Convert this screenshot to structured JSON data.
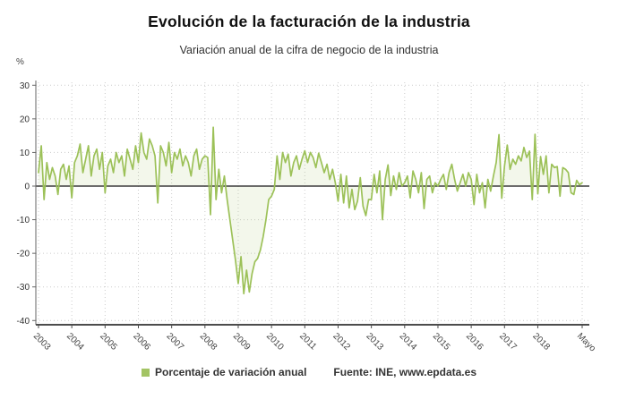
{
  "header": {
    "title": "Evolución de la facturación de la industria",
    "subtitle": "Variación anual de la cifra de negocio de la industria"
  },
  "chart": {
    "unit_label": "%"
  },
  "legend": {
    "series_label": "Porcentaje de variación anual",
    "source_label": "Fuente: INE, www.epdata.es",
    "swatch_color": "#a3c464"
  },
  "colors": {
    "line": "#9cc158",
    "fill": "rgba(156,193,88,0.12)",
    "grid": "#cccccc",
    "zero_line": "#3c3c3c",
    "axis": "#4c4c4c"
  },
  "chart_data": {
    "type": "line",
    "title": "Evolución de la facturación de la industria",
    "subtitle": "Variación anual de la cifra de negocio de la industria",
    "ylabel": "%",
    "xlabel": "",
    "ylim": [
      -40,
      30
    ],
    "yticks": [
      30,
      20,
      10,
      0,
      -10,
      -20,
      -30,
      -40
    ],
    "grid": true,
    "legend_position": "bottom",
    "frequency": "monthly",
    "x_range": "Jan 2003 - May 2019",
    "x_tick_labels": [
      "2003",
      "2004",
      "2005",
      "2006",
      "2007",
      "2008",
      "2009",
      "2010",
      "2011",
      "2012",
      "2013",
      "2014",
      "2015",
      "2016",
      "2017",
      "2018",
      "Mayo"
    ],
    "series": [
      {
        "name": "Porcentaje de variación anual",
        "values": [
          4,
          12,
          -4,
          7,
          2,
          5.5,
          3,
          -2.5,
          5,
          6.5,
          2,
          6,
          -3.5,
          7,
          9,
          12.5,
          4,
          8,
          12,
          3,
          9,
          11,
          5,
          10,
          -2,
          6,
          8,
          4,
          10,
          7,
          9,
          3,
          11,
          8,
          5,
          12,
          7,
          15.8,
          10,
          8,
          14,
          12,
          9,
          -5,
          12,
          10,
          6,
          13,
          4,
          10,
          8,
          11,
          6,
          9,
          7,
          3,
          9,
          11,
          5,
          8,
          9,
          8.5,
          -8.5,
          17.5,
          -4,
          5,
          -2,
          3,
          -4,
          -10,
          -16,
          -22,
          -29,
          -21,
          -32,
          -25,
          -31.5,
          -26,
          -22.5,
          -21.5,
          -19,
          -15,
          -10,
          -4,
          -3,
          -1,
          9,
          2,
          10,
          7,
          9.5,
          3,
          7,
          9,
          5,
          8,
          10.5,
          7,
          10,
          8.5,
          5.5,
          9.8,
          7,
          4,
          6.5,
          2,
          5,
          1,
          -4.5,
          3.5,
          -5,
          3,
          -6.5,
          -1,
          -7,
          -4.5,
          2.5,
          -6,
          -8.8,
          -4,
          -4,
          3.5,
          -2,
          4.5,
          -10,
          2,
          6.3,
          -2.8,
          3,
          -1,
          4,
          0,
          1,
          3,
          -3.5,
          4.5,
          2,
          -2,
          4,
          -6.7,
          2,
          3,
          -2,
          1,
          0,
          2,
          3.5,
          -1,
          4,
          6.5,
          2,
          -1.5,
          1,
          3.5,
          0,
          4,
          2,
          -5.5,
          3.5,
          -2,
          1,
          -6.5,
          2,
          -1.5,
          3,
          7,
          15.3,
          -3.6,
          6,
          12.2,
          5,
          8,
          6.5,
          9,
          7.5,
          11.5,
          8.5,
          10.4,
          -4,
          15.4,
          -2.3,
          8.8,
          3.5,
          9,
          -2,
          6.5,
          5.5,
          5.8,
          -3,
          5.5,
          5,
          4,
          -2,
          -2.5,
          1.7,
          0.4,
          1
        ]
      }
    ]
  }
}
